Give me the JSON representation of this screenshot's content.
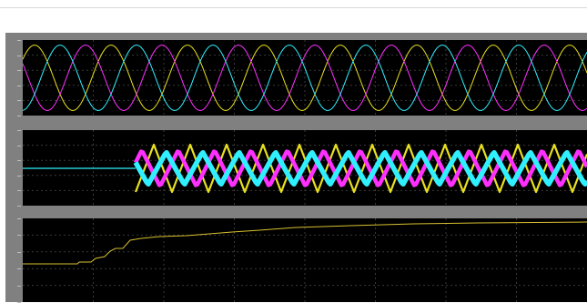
{
  "window": {
    "title": ""
  },
  "colors": {
    "background": "#000000",
    "frame": "#808080",
    "grid": "#3a3a3a",
    "series_yellow": "#e8e020",
    "series_magenta": "#ff30ff",
    "series_cyan": "#30f0ff",
    "step_line": "#d8c030"
  },
  "scope": {
    "panels": [
      {
        "name": "three-phase-sine",
        "type": "line"
      },
      {
        "name": "triangular-carriers",
        "type": "line"
      },
      {
        "name": "step-response",
        "type": "line"
      }
    ]
  }
}
